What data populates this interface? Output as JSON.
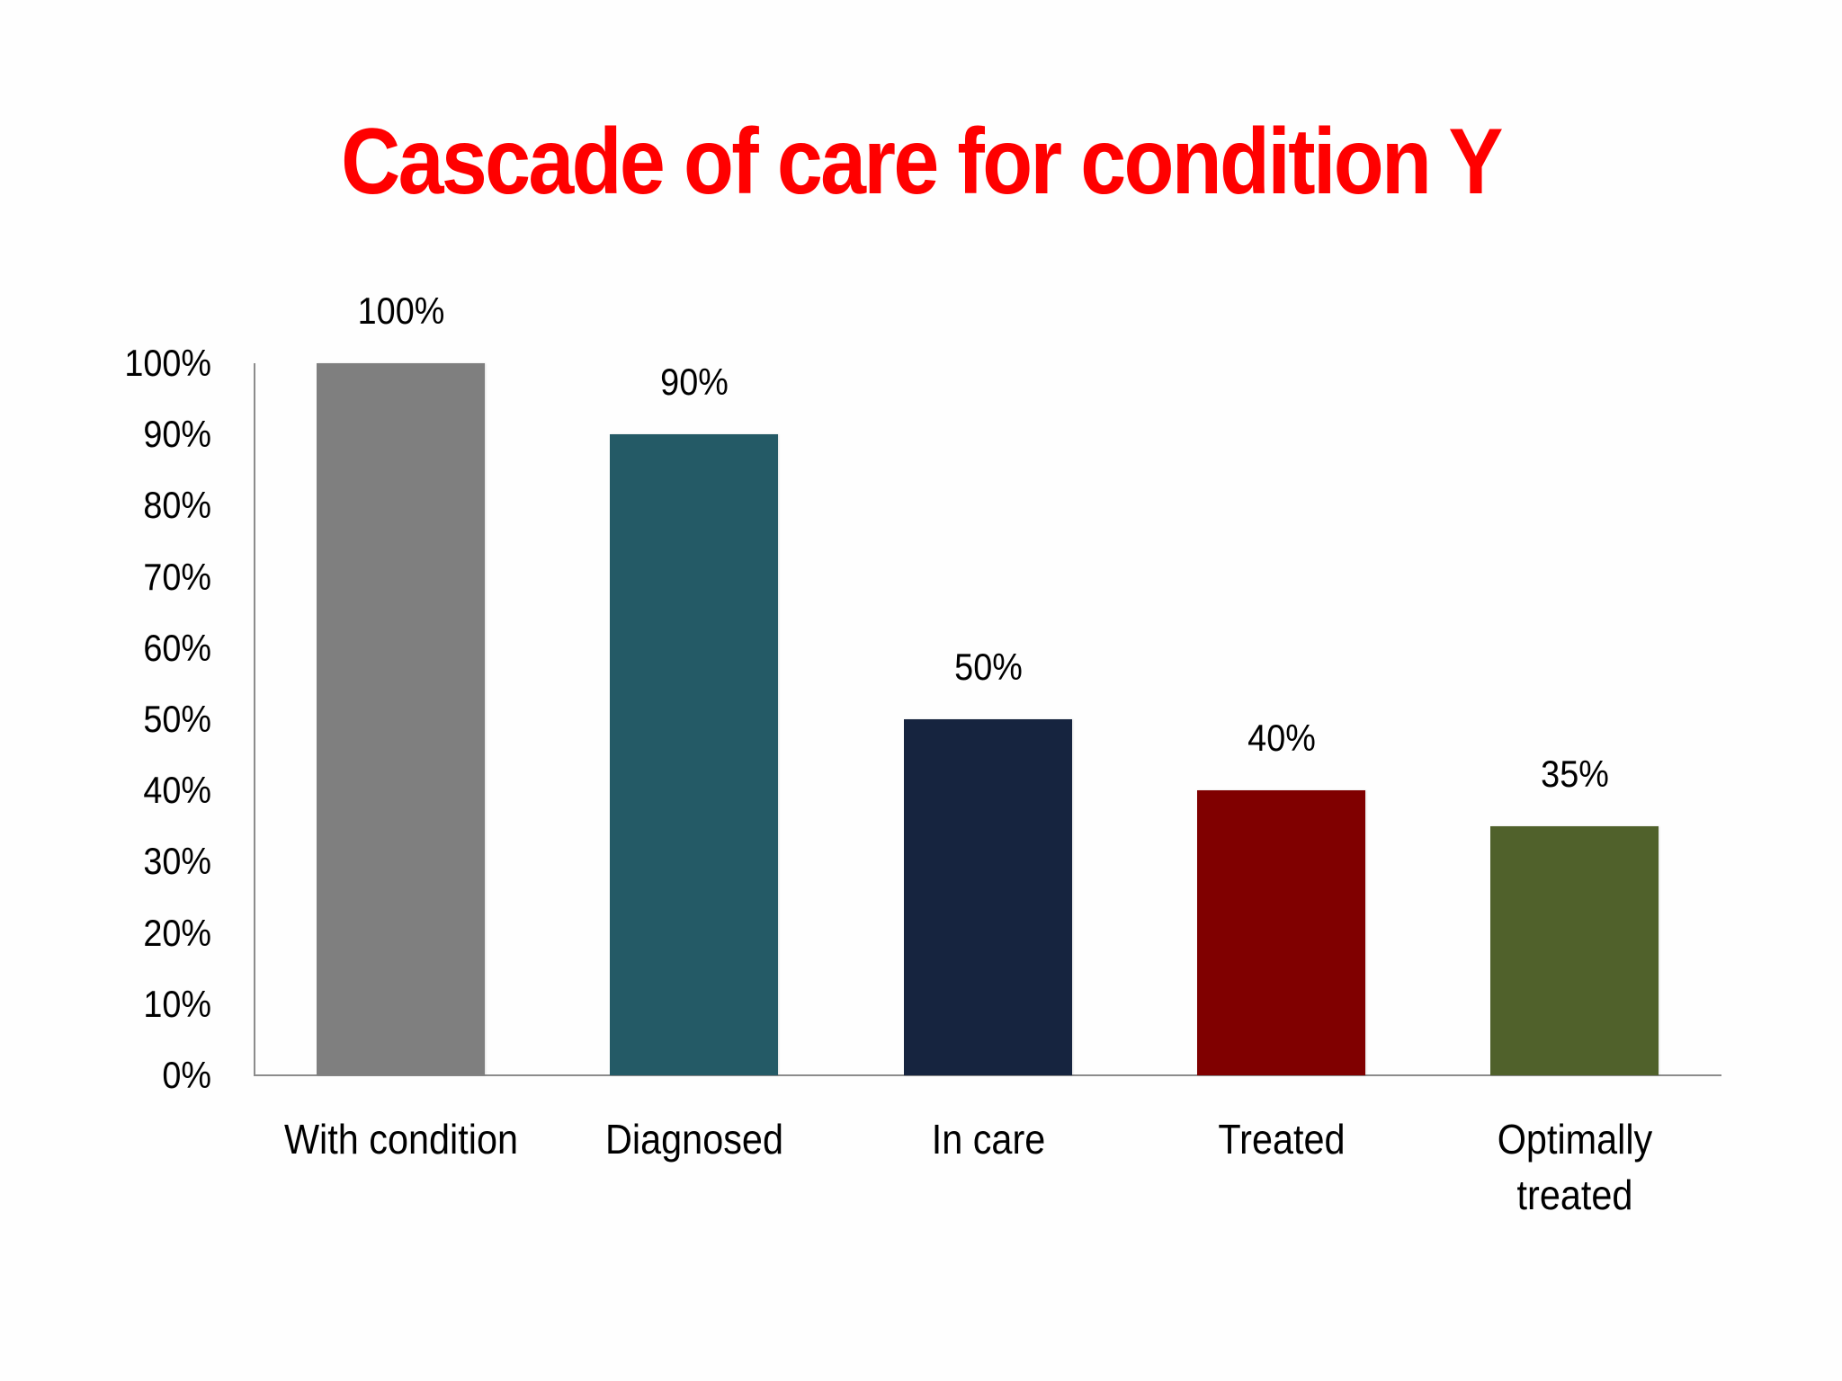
{
  "title": "Cascade of care for condition Y",
  "chart_data": {
    "type": "bar",
    "title": "Cascade of care for condition Y",
    "xlabel": "",
    "ylabel": "",
    "ylim": [
      0,
      100
    ],
    "yticks": [
      "0%",
      "10%",
      "20%",
      "30%",
      "40%",
      "50%",
      "60%",
      "70%",
      "80%",
      "90%",
      "100%"
    ],
    "grid": false,
    "legend": null,
    "categories": [
      "With condition",
      "Diagnosed",
      "In care",
      "Treated",
      "Optimally treated"
    ],
    "values": [
      100,
      90,
      50,
      40,
      35
    ],
    "data_labels": [
      "100%",
      "90%",
      "50%",
      "40%",
      "35%"
    ],
    "colors": [
      "#7f7f7f",
      "#245a66",
      "#16243f",
      "#800000",
      "#50612b"
    ],
    "unit": "%"
  },
  "axis": {
    "ticks": [
      "100%",
      "90%",
      "80%",
      "70%",
      "60%",
      "50%",
      "40%",
      "30%",
      "20%",
      "10%",
      "0%"
    ]
  },
  "bars": [
    {
      "label": "With condition",
      "value_label": "100%",
      "color": "#7f7f7f"
    },
    {
      "label": "Diagnosed",
      "value_label": "90%",
      "color": "#245a66"
    },
    {
      "label": "In care",
      "value_label": "50%",
      "color": "#16243f"
    },
    {
      "label": "Treated",
      "value_label": "40%",
      "color": "#800000"
    },
    {
      "label": "Optimally\ntreated",
      "value_label": "35%",
      "color": "#50612b"
    }
  ],
  "colors": {
    "title": "#ff0000",
    "axis": "#8c8c8c",
    "background": "#fefefe"
  }
}
